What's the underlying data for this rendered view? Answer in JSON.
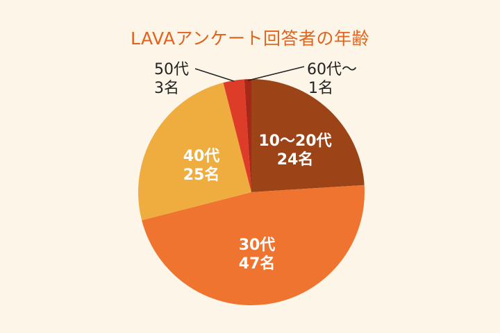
{
  "chart_data": {
    "type": "pie",
    "title": "LAVAアンケート回答者の年齢",
    "categories": [
      "10〜20代",
      "30代",
      "40代",
      "50代",
      "60代〜"
    ],
    "values": [
      24,
      47,
      25,
      3,
      1
    ],
    "unit": "名",
    "colors": [
      "#9c4418",
      "#ee7430",
      "#f0ad3f",
      "#dc3c28",
      "#a82818"
    ],
    "labels": [
      {
        "name": "10〜20代",
        "count": "24名"
      },
      {
        "name": "30代",
        "count": "47名"
      },
      {
        "name": "40代",
        "count": "25名"
      },
      {
        "name": "50代",
        "count": "3名"
      },
      {
        "name": "60代〜",
        "count": "1名"
      }
    ],
    "start_angle": "12 o'clock",
    "direction": "clockwise",
    "legend": "none"
  },
  "colors": {
    "background": "#fdf5e7",
    "title": "#e0641e"
  }
}
